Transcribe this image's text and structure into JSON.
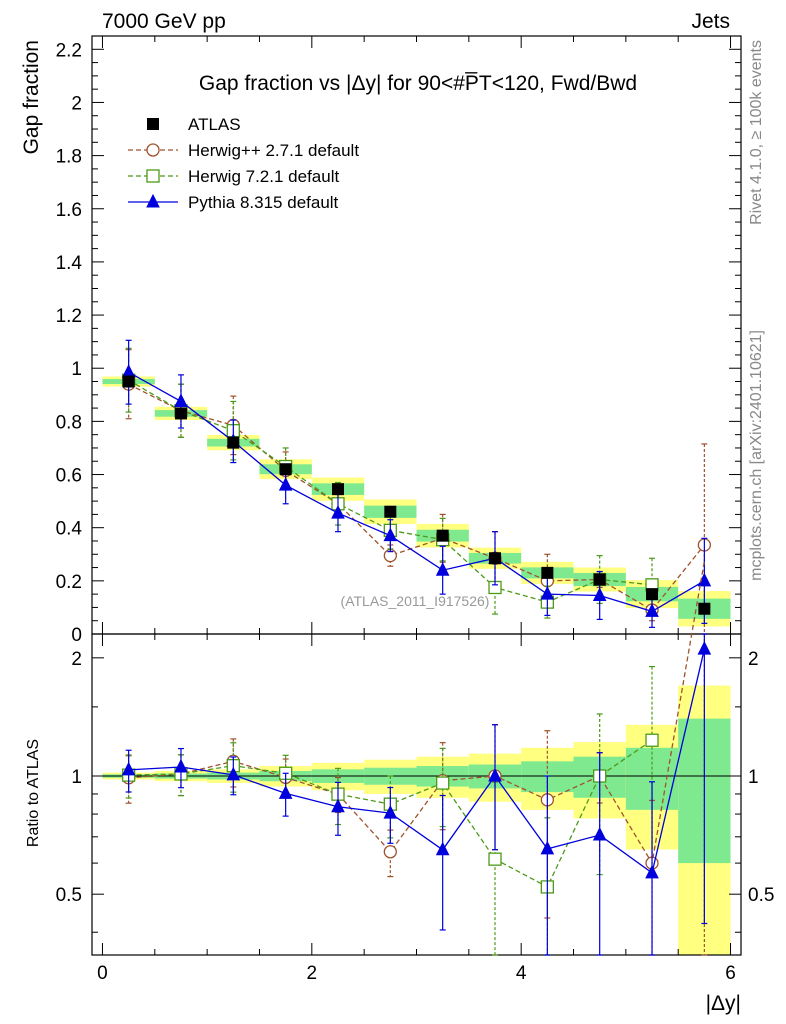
{
  "header": {
    "left": "7000 GeV pp",
    "right": "Jets"
  },
  "side_text": {
    "rivet": "Rivet 4.1.0, ≥ 100k events",
    "mcplots": "mcplots.cern.ch [arXiv:2401.10621]"
  },
  "chart_data": {
    "type": "line",
    "title": "Gap fraction vs |Δy| for 90<#P̅T<120, Fwd/Bwd",
    "xlabel": "|Δy|",
    "ylabel": "Gap fraction",
    "ratio_ylabel": "Ratio to ATLAS",
    "watermark": "(ATLAS_2011_I917526)",
    "xlim": [
      -0.1,
      6.1
    ],
    "ylim": [
      0,
      2.25
    ],
    "ratio_ylim": [
      0.35,
      2.3
    ],
    "x_ticks": [
      "0",
      "2",
      "4",
      "6"
    ],
    "y_ticks": [
      "0",
      "0.2",
      "0.4",
      "0.6",
      "0.8",
      "1",
      "1.2",
      "1.4",
      "1.6",
      "1.8",
      "2",
      "2.2"
    ],
    "ratio_ticks": [
      "0.5",
      "1",
      "2"
    ],
    "x": [
      0.25,
      0.75,
      1.25,
      1.75,
      2.25,
      2.75,
      3.25,
      3.75,
      4.25,
      4.75,
      5.25,
      5.75
    ],
    "data": {
      "name": "ATLAS",
      "values": [
        0.95,
        0.83,
        0.72,
        0.62,
        0.545,
        0.46,
        0.37,
        0.285,
        0.23,
        0.205,
        0.15,
        0.095
      ],
      "band_yellow": [
        0.02,
        0.03,
        0.04,
        0.06,
        0.08,
        0.1,
        0.12,
        0.14,
        0.18,
        0.22,
        0.35,
        0.7
      ],
      "band_green": [
        0.01,
        0.015,
        0.02,
        0.03,
        0.04,
        0.05,
        0.06,
        0.07,
        0.09,
        0.12,
        0.18,
        0.4
      ]
    },
    "series": [
      {
        "name": "Herwig++ 2.7.1 default",
        "color": "#a0522d",
        "marker": "circle",
        "dash": "dashed",
        "values": [
          0.94,
          0.84,
          0.785,
          0.615,
          0.49,
          0.295,
          0.36,
          0.285,
          0.2,
          0.205,
          0.09,
          0.335
        ],
        "errors": [
          0.13,
          0.1,
          0.11,
          0.07,
          0.05,
          0.04,
          0.09,
          0.1,
          0.1,
          0.03,
          0.04,
          0.38
        ]
      },
      {
        "name": "Herwig 7.2.1 default",
        "color": "#4c9a1a",
        "marker": "square",
        "dash": "dashed",
        "values": [
          0.955,
          0.84,
          0.765,
          0.63,
          0.49,
          0.39,
          0.355,
          0.175,
          0.12,
          0.205,
          0.185,
          null
        ],
        "errors": [
          0.12,
          0.1,
          0.11,
          0.07,
          0.08,
          0.07,
          0.08,
          0.1,
          0.06,
          0.09,
          0.1,
          null
        ]
      },
      {
        "name": "Pythia 8.315 default",
        "color": "#0000dd",
        "marker": "triangle",
        "dash": "solid",
        "values": [
          0.985,
          0.875,
          0.725,
          0.56,
          0.455,
          0.37,
          0.24,
          0.285,
          0.15,
          0.145,
          0.085,
          0.2
        ],
        "errors": [
          0.12,
          0.1,
          0.08,
          0.07,
          0.07,
          0.06,
          0.09,
          0.1,
          0.08,
          0.09,
          0.06,
          0.16
        ]
      }
    ]
  }
}
